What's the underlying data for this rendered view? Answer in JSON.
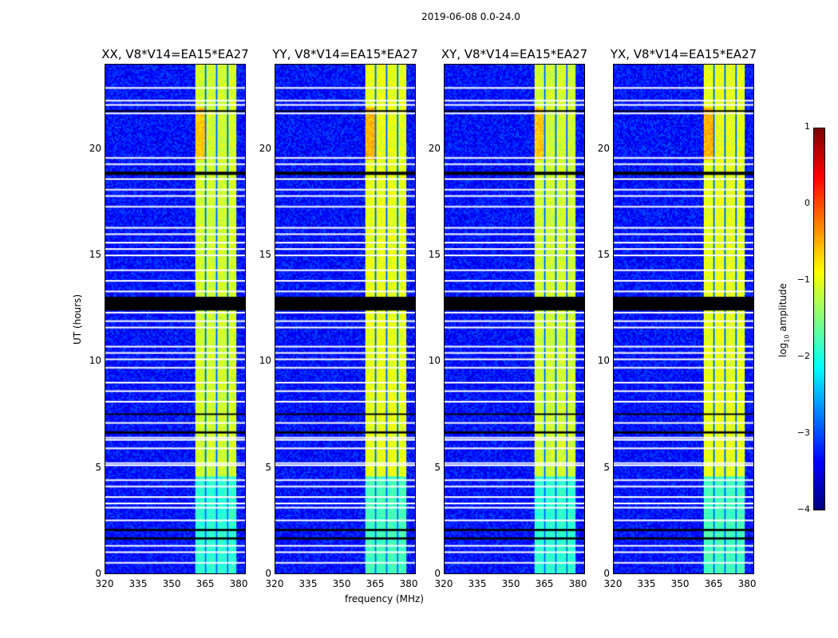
{
  "chart_data": {
    "type": "heatmap",
    "title": "2019-06-08 0.0-24.0",
    "xlabel": "frequency (MHz)",
    "ylabel": "UT (hours)",
    "xlim": [
      320,
      383.2
    ],
    "ylim": [
      0,
      24
    ],
    "xticks": [
      "320",
      "335",
      "350",
      "365",
      "380"
    ],
    "xtick_values": [
      320,
      335,
      350,
      365,
      380
    ],
    "yticks": [
      "0",
      "5",
      "10",
      "15",
      "20"
    ],
    "ytick_values": [
      0,
      5,
      10,
      15,
      20
    ],
    "panels": [
      {
        "title": "XX, V8*V14=EA15*EA27"
      },
      {
        "title": "YY, V8*V14=EA15*EA27"
      },
      {
        "title": "XY, V8*V14=EA15*EA27"
      },
      {
        "title": "YX, V8*V14=EA15*EA27"
      }
    ],
    "colorbar": {
      "label_prefix": "log",
      "label_sub": "10",
      "label_suffix": " amplitude",
      "range": [
        -4,
        1
      ],
      "ticks": [
        "1",
        "0",
        "−1",
        "−2",
        "−3",
        "−4"
      ],
      "tick_values": [
        1,
        0,
        -1,
        -2,
        -3,
        -4
      ],
      "colormap": "jet"
    },
    "background_level": -3.3,
    "bright_band_MHz": [
      360,
      379
    ],
    "bright_band_level": -1.1,
    "band_gaps_MHz": [
      365,
      370,
      375
    ],
    "flagged_black_hours": [
      [
        12.4,
        13.05
      ],
      [
        18.8,
        18.95
      ],
      [
        2.0,
        2.1
      ],
      [
        1.6,
        1.7
      ],
      [
        6.6,
        6.7
      ],
      [
        7.5,
        7.55
      ],
      [
        21.8,
        21.85
      ]
    ],
    "flagged_white_hours": [
      0.5,
      1.0,
      1.3,
      2.5,
      3.1,
      3.3,
      3.6,
      4.1,
      4.4,
      5.1,
      5.2,
      5.9,
      6.3,
      6.4,
      7.1,
      8.1,
      8.6,
      9.0,
      9.7,
      10.1,
      10.4,
      10.7,
      11.6,
      11.9,
      12.3,
      13.3,
      13.8,
      14.3,
      15.0,
      15.3,
      15.6,
      16.0,
      16.3,
      17.3,
      17.8,
      18.1,
      18.6,
      19.3,
      19.6,
      21.7,
      22.1,
      22.3,
      22.9
    ]
  }
}
